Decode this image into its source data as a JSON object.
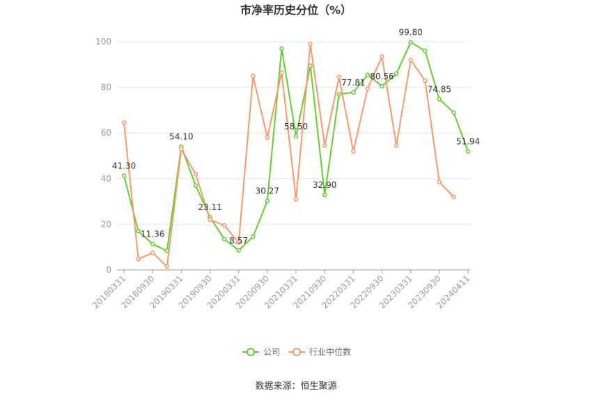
{
  "chart_data": {
    "type": "line",
    "title": "市净率历史分位（%）",
    "ylim": [
      0,
      100
    ],
    "yticks": [
      0,
      20,
      40,
      60,
      80,
      100
    ],
    "x": [
      "20180331",
      "20180630",
      "20180930",
      "20181231",
      "20190331",
      "20190630",
      "20190930",
      "20191231",
      "20200331",
      "20200630",
      "20200930",
      "20201231",
      "20210331",
      "20210630",
      "20210930",
      "20211231",
      "20220331",
      "20220630",
      "20220930",
      "20221231",
      "20230331",
      "20230630",
      "20230930",
      "20231231",
      "20240411"
    ],
    "xtick_labels": [
      "20180331",
      "20180930",
      "20190331",
      "20190930",
      "20200331",
      "20200930",
      "20210331",
      "20210930",
      "20220331",
      "20220930",
      "20230331",
      "20230930",
      "20240411"
    ],
    "xtick_indices": [
      0,
      2,
      4,
      6,
      8,
      10,
      12,
      14,
      16,
      18,
      20,
      22,
      24
    ],
    "series": [
      {
        "name": "公司",
        "color": "#66cc33",
        "values": [
          41.3,
          17.0,
          11.36,
          8.3,
          54.1,
          37.0,
          23.11,
          13.5,
          8.57,
          14.5,
          30.27,
          97.0,
          58.5,
          89.5,
          32.9,
          77.0,
          77.81,
          85.5,
          80.56,
          86.0,
          99.8,
          96.0,
          74.85,
          69.0,
          51.94
        ]
      },
      {
        "name": "行业中位数",
        "color": "#f59a6c",
        "values": [
          64.5,
          4.8,
          7.5,
          1.5,
          53.0,
          42.0,
          22.0,
          19.5,
          12.0,
          85.0,
          58.0,
          86.5,
          31.0,
          99.0,
          54.5,
          84.5,
          52.0,
          79.5,
          93.5,
          54.5,
          92.0,
          83.0,
          38.5,
          32.0,
          null
        ]
      }
    ],
    "data_labels": [
      {
        "series": 0,
        "index": 0,
        "text": "41.30"
      },
      {
        "series": 0,
        "index": 2,
        "text": "11.36"
      },
      {
        "series": 0,
        "index": 4,
        "text": "54.10"
      },
      {
        "series": 0,
        "index": 6,
        "text": "23.11"
      },
      {
        "series": 0,
        "index": 8,
        "text": "8.57"
      },
      {
        "series": 0,
        "index": 10,
        "text": "30.27"
      },
      {
        "series": 0,
        "index": 12,
        "text": "58.50"
      },
      {
        "series": 0,
        "index": 14,
        "text": "32.90"
      },
      {
        "series": 0,
        "index": 16,
        "text": "77.81"
      },
      {
        "series": 0,
        "index": 18,
        "text": "80.56"
      },
      {
        "series": 0,
        "index": 20,
        "text": "99.80"
      },
      {
        "series": 0,
        "index": 22,
        "text": "74.85"
      },
      {
        "series": 0,
        "index": 24,
        "text": "51.94"
      }
    ],
    "grid": true,
    "legend": "bottom-center"
  },
  "source_text": "数据来源：恒生聚源"
}
